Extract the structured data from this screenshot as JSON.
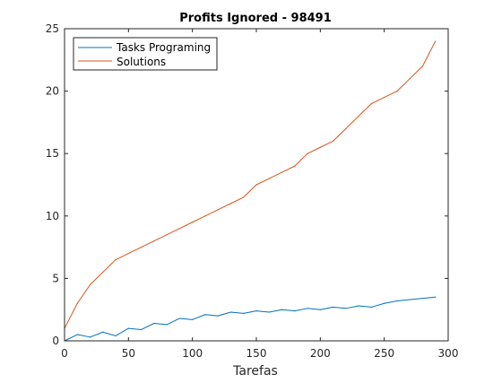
{
  "chart_data": {
    "type": "line",
    "title": "Profits Ignored - 98491",
    "xlabel": "Tarefas",
    "ylabel": "",
    "xlim": [
      0,
      300
    ],
    "ylim": [
      0,
      25
    ],
    "xticks": [
      0,
      50,
      100,
      150,
      200,
      250,
      300
    ],
    "yticks": [
      0,
      5,
      10,
      15,
      20,
      25
    ],
    "grid": false,
    "legend_position": "top-left",
    "series": [
      {
        "name": "Tasks Programing",
        "color": "#0072BD",
        "x": [
          0,
          10,
          20,
          30,
          40,
          50,
          60,
          70,
          80,
          90,
          100,
          110,
          120,
          130,
          140,
          150,
          160,
          170,
          180,
          190,
          200,
          210,
          220,
          230,
          240,
          250,
          260,
          270,
          280,
          290
        ],
        "y": [
          0,
          0.5,
          0.3,
          0.7,
          0.4,
          1.0,
          0.9,
          1.4,
          1.3,
          1.8,
          1.7,
          2.1,
          2.0,
          2.3,
          2.2,
          2.4,
          2.3,
          2.5,
          2.4,
          2.6,
          2.5,
          2.7,
          2.6,
          2.8,
          2.7,
          3.0,
          3.2,
          3.3,
          3.4,
          3.5
        ]
      },
      {
        "name": "Solutions",
        "color": "#D95319",
        "x": [
          0,
          10,
          20,
          30,
          40,
          50,
          60,
          70,
          80,
          90,
          100,
          110,
          120,
          130,
          140,
          150,
          160,
          170,
          180,
          190,
          200,
          210,
          220,
          230,
          240,
          250,
          260,
          270,
          280,
          290
        ],
        "y": [
          1,
          3,
          4.5,
          5.5,
          6.5,
          7,
          7.5,
          8,
          8.5,
          9,
          9.5,
          10,
          10.5,
          11,
          11.5,
          12.5,
          13,
          13.5,
          14,
          15,
          15.5,
          16,
          17,
          18,
          19,
          19.5,
          20,
          21,
          22,
          24
        ]
      }
    ]
  }
}
